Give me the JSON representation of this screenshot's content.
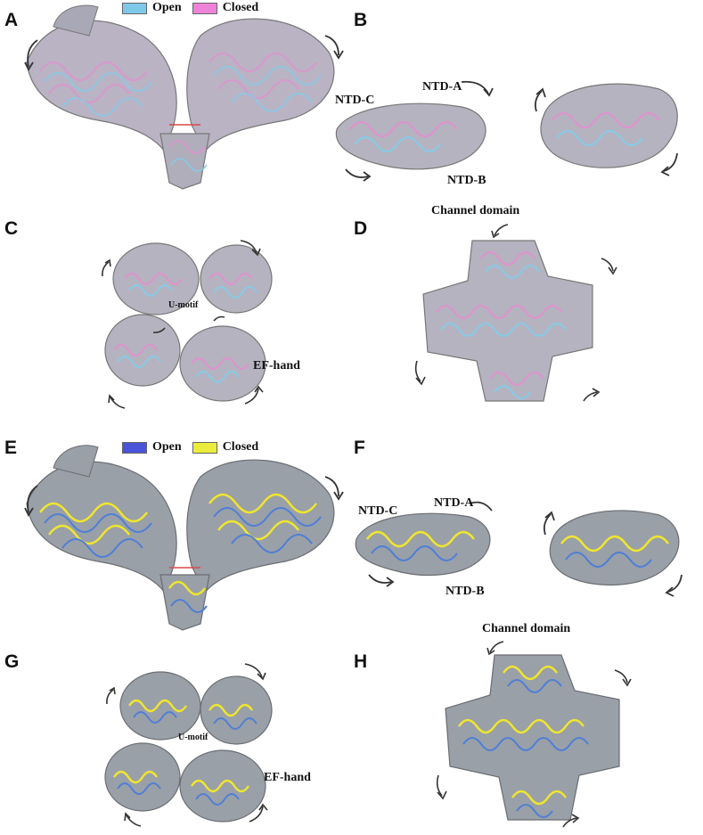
{
  "panels": {
    "A": {
      "letter": "A"
    },
    "B": {
      "letter": "B",
      "labels": {
        "ntd_c": "NTD-C",
        "ntd_a": "NTD-A",
        "ntd_b": "NTD-B"
      }
    },
    "C": {
      "letter": "C",
      "labels": {
        "u_motif": "U-motif",
        "ef_hand": "EF-hand"
      }
    },
    "D": {
      "letter": "D",
      "labels": {
        "channel": "Channel domain"
      }
    },
    "E": {
      "letter": "E"
    },
    "F": {
      "letter": "F",
      "labels": {
        "ntd_c": "NTD-C",
        "ntd_a": "NTD-A",
        "ntd_b": "NTD-B"
      }
    },
    "G": {
      "letter": "G",
      "labels": {
        "u_motif": "U-motif",
        "ef_hand": "EF-hand"
      }
    },
    "H": {
      "letter": "H",
      "labels": {
        "channel": "Channel domain"
      }
    }
  },
  "legend_top": {
    "open": {
      "label": "Open",
      "color": "#7ec8ea"
    },
    "closed": {
      "label": "Closed",
      "color": "#ee82d8"
    }
  },
  "legend_bottom": {
    "open": {
      "label": "Open",
      "color": "#4a54d8"
    },
    "closed": {
      "label": "Closed",
      "color": "#ecec3c"
    }
  },
  "colors": {
    "grey": "#8a8f93",
    "pink": "#e28fd0",
    "cyan": "#86cbe8",
    "blue": "#4f7fd6",
    "yellow": "#f0e62c",
    "arrow": "#333333",
    "link_red": "#d84a4a"
  }
}
